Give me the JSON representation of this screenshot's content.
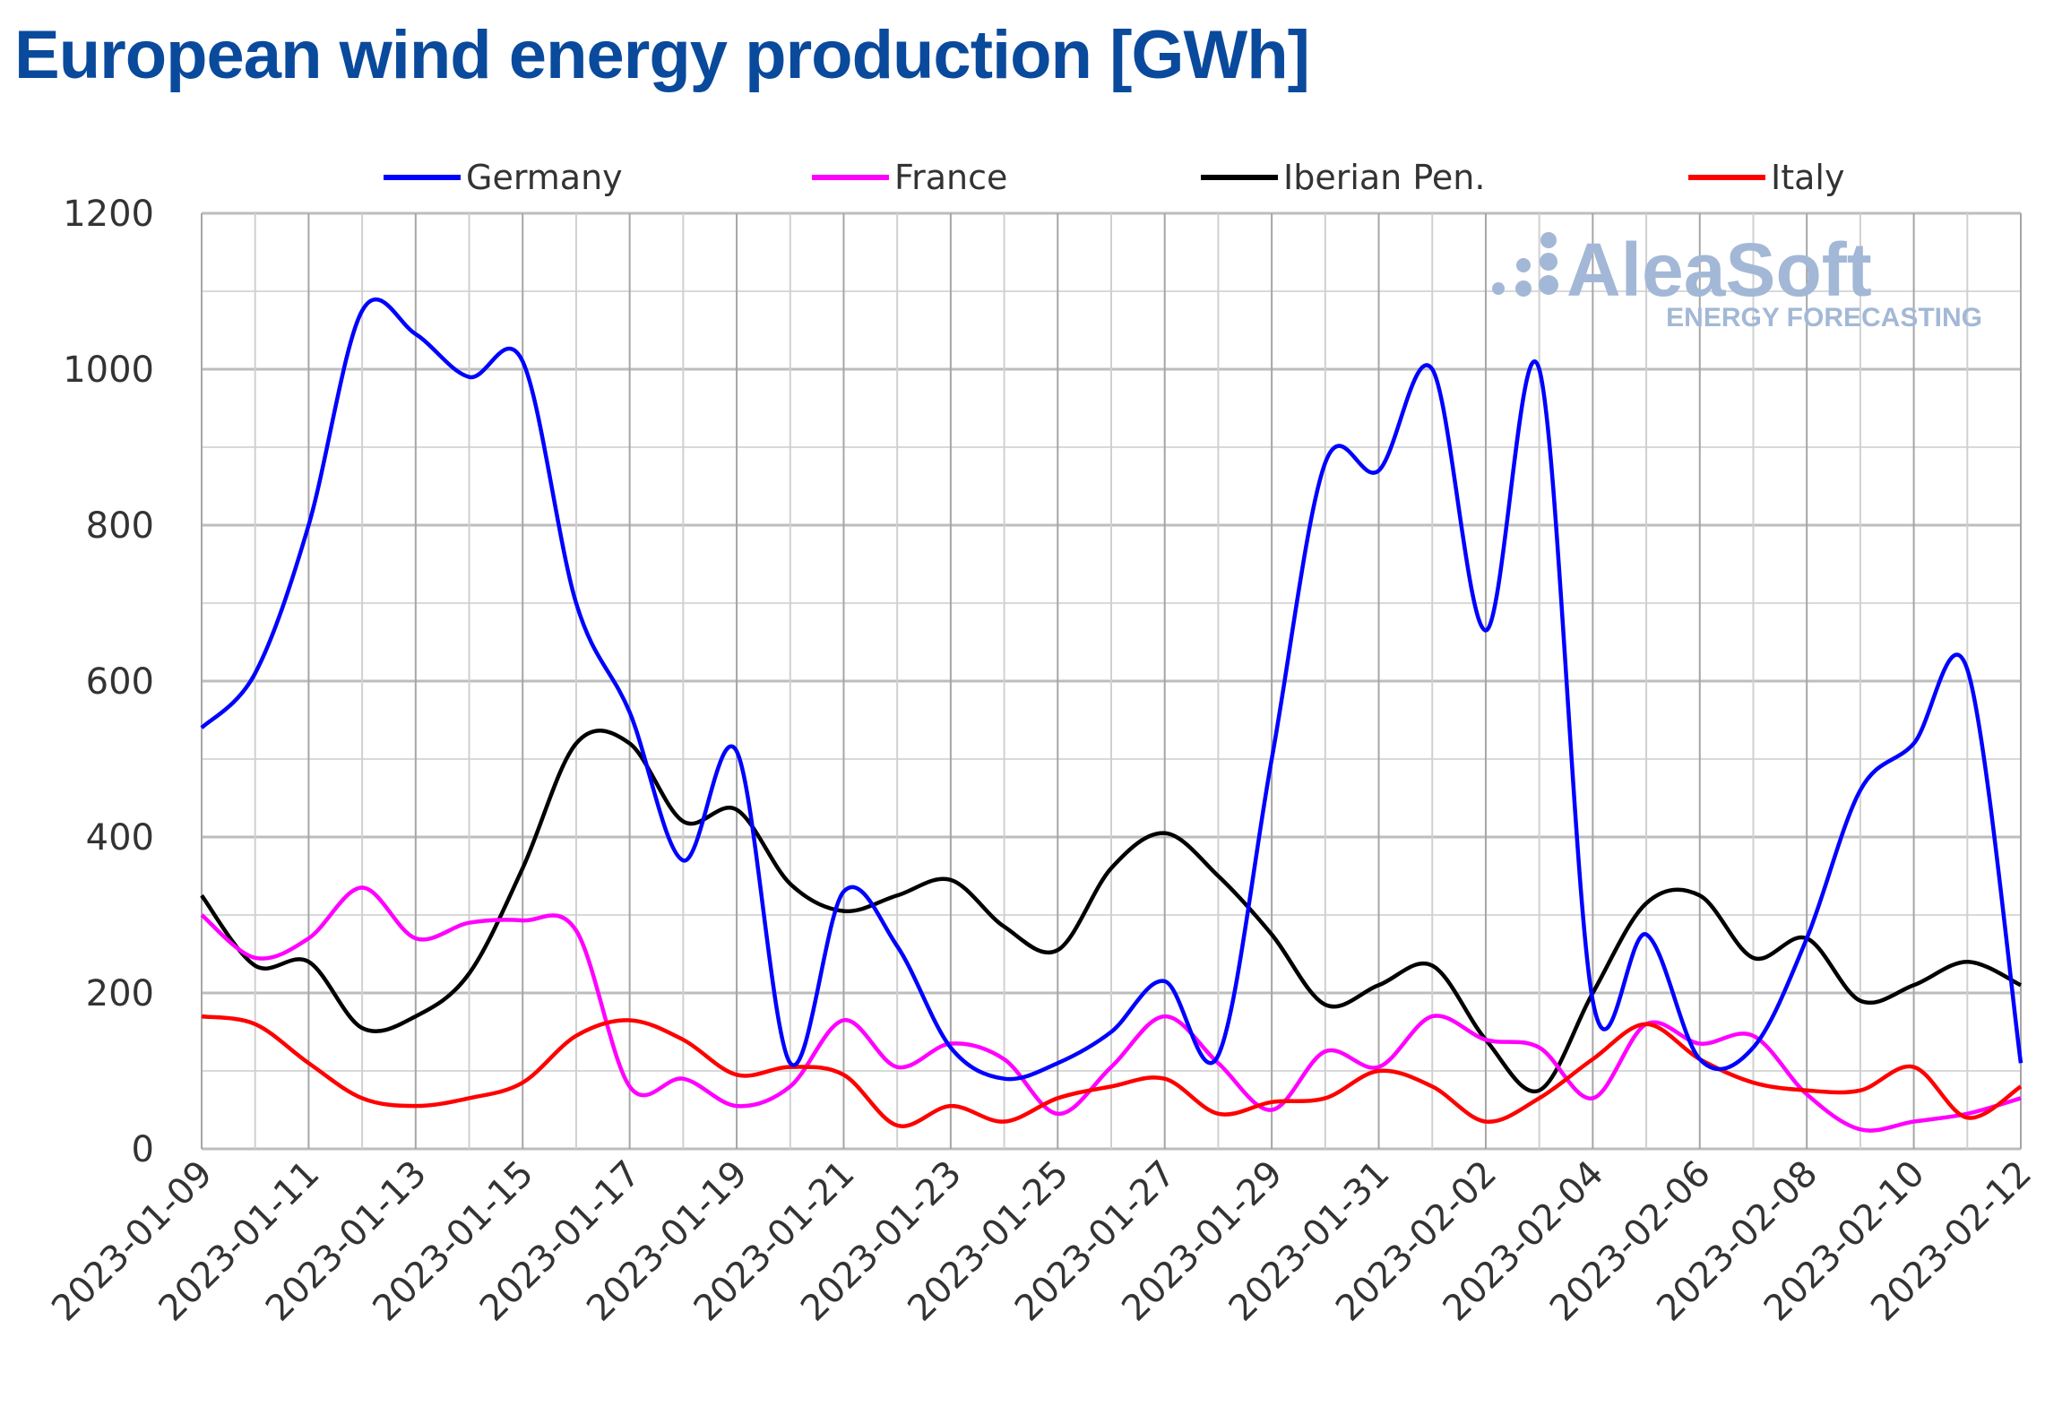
{
  "chart_data": {
    "type": "line",
    "title": "European wind energy production [GWh]",
    "xlabel": "",
    "ylabel": "",
    "ylim": [
      0,
      1200
    ],
    "yticks": [
      0,
      200,
      400,
      600,
      800,
      1000,
      1200
    ],
    "grid": true,
    "legend_placement": "top",
    "watermark": {
      "brand": "AleaSoft",
      "tagline": "ENERGY FORECASTING",
      "color": "#a3b8d6"
    },
    "x": [
      "2023-01-09",
      "2023-01-10",
      "2023-01-11",
      "2023-01-12",
      "2023-01-13",
      "2023-01-14",
      "2023-01-15",
      "2023-01-16",
      "2023-01-17",
      "2023-01-18",
      "2023-01-19",
      "2023-01-20",
      "2023-01-21",
      "2023-01-22",
      "2023-01-23",
      "2023-01-24",
      "2023-01-25",
      "2023-01-26",
      "2023-01-27",
      "2023-01-28",
      "2023-01-29",
      "2023-01-30",
      "2023-01-31",
      "2023-02-01",
      "2023-02-02",
      "2023-02-03",
      "2023-02-04",
      "2023-02-05",
      "2023-02-06",
      "2023-02-07",
      "2023-02-08",
      "2023-02-09",
      "2023-02-10",
      "2023-02-11",
      "2023-02-12"
    ],
    "xtick_labels": [
      "2023-01-09",
      "2023-01-11",
      "2023-01-13",
      "2023-01-15",
      "2023-01-17",
      "2023-01-19",
      "2023-01-21",
      "2023-01-23",
      "2023-01-25",
      "2023-01-27",
      "2023-01-29",
      "2023-01-31",
      "2023-02-02",
      "2023-02-04",
      "2023-02-06",
      "2023-02-08",
      "2023-02-10",
      "2023-02-12"
    ],
    "series": [
      {
        "name": "Germany",
        "color": "#0000ff",
        "values": [
          540,
          610,
          800,
          1075,
          1045,
          990,
          1010,
          700,
          560,
          370,
          510,
          110,
          330,
          260,
          130,
          90,
          110,
          150,
          215,
          120,
          500,
          880,
          870,
          1000,
          665,
          1000,
          190,
          275,
          115,
          130,
          270,
          460,
          520,
          615,
          110
        ]
      },
      {
        "name": "France",
        "color": "#ff00ff",
        "values": [
          300,
          245,
          270,
          335,
          270,
          290,
          293,
          280,
          80,
          90,
          55,
          80,
          165,
          105,
          135,
          115,
          45,
          105,
          170,
          110,
          50,
          125,
          105,
          170,
          140,
          130,
          65,
          160,
          135,
          145,
          70,
          25,
          35,
          45,
          65
        ]
      },
      {
        "name": "Iberian Pen.",
        "color": "#000000",
        "values": [
          325,
          235,
          240,
          155,
          170,
          225,
          360,
          520,
          520,
          420,
          435,
          340,
          305,
          325,
          345,
          285,
          255,
          360,
          405,
          350,
          275,
          185,
          210,
          235,
          140,
          75,
          200,
          315,
          325,
          245,
          270,
          190,
          210,
          240,
          210
        ]
      },
      {
        "name": "Italy",
        "color": "#ff0000",
        "values": [
          170,
          160,
          110,
          65,
          55,
          65,
          85,
          145,
          165,
          140,
          95,
          105,
          95,
          30,
          55,
          35,
          65,
          80,
          90,
          45,
          60,
          65,
          100,
          80,
          35,
          65,
          115,
          160,
          115,
          85,
          75,
          75,
          105,
          40,
          80
        ]
      }
    ]
  }
}
